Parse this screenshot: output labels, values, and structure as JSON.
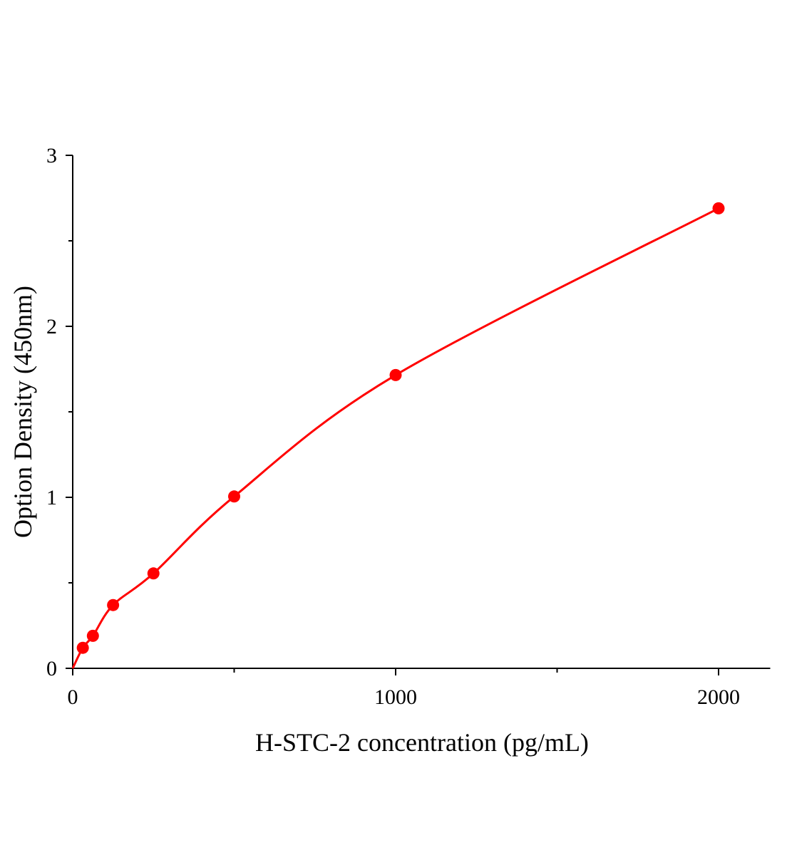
{
  "chart_data": {
    "type": "scatter",
    "title": "",
    "xlabel": "H-STC-2 concentration (pg/mL)",
    "ylabel": "Option Density (450nm)",
    "xlim": [
      0,
      2160
    ],
    "ylim": [
      0,
      3
    ],
    "x_ticks": [
      0,
      1000,
      2000
    ],
    "x_minor_ticks": [
      500,
      1500
    ],
    "y_ticks": [
      0,
      1,
      2,
      3
    ],
    "y_minor_ticks": [
      0.5,
      1.5,
      2.5
    ],
    "grid": false,
    "color": "#ff0000",
    "series": [
      {
        "x": [
          31.25,
          62.5,
          125,
          250,
          500,
          1000,
          2000
        ],
        "y": [
          0.12,
          0.19,
          0.37,
          0.555,
          1.005,
          1.715,
          2.69
        ]
      }
    ],
    "fit_curve": true
  }
}
